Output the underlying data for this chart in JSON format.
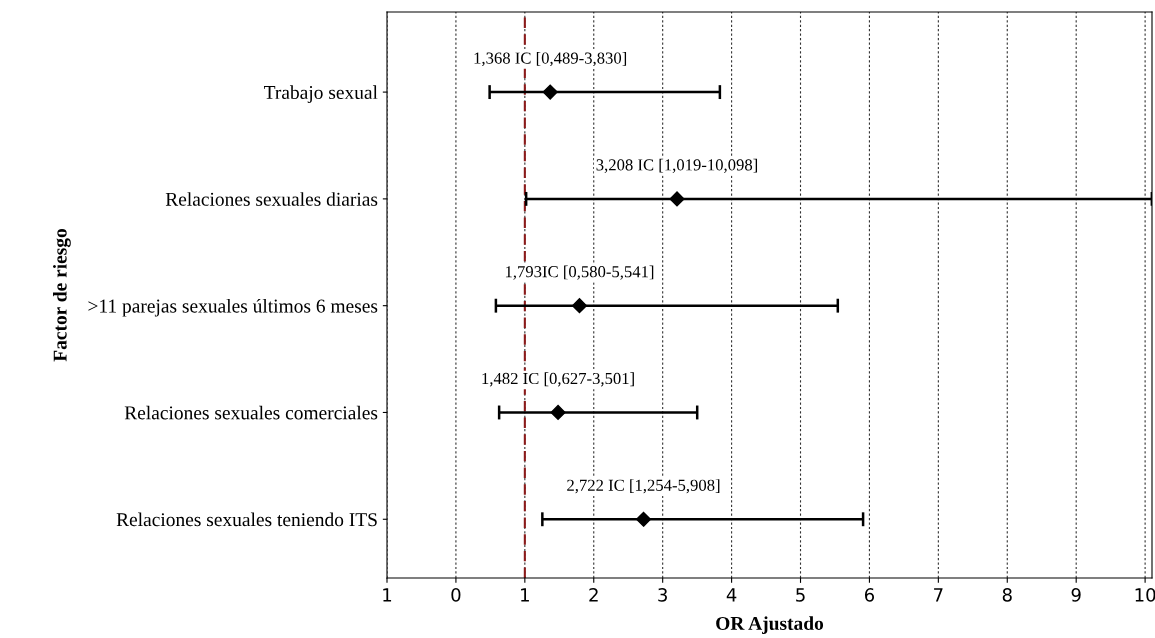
{
  "chart_data": {
    "type": "scatter",
    "orientation": "horizontal",
    "xlabel": "OR Ajustado",
    "ylabel": "Factor de riesgo",
    "categories": [
      "Trabajo sexual",
      "Relaciones sexuales diarias",
      ">11 parejas sexuales últimos 6 meses",
      "Relaciones sexuales comerciales",
      "Relaciones sexuales teniendo ITS"
    ],
    "series": [
      {
        "color": "#000000",
        "values": [
          1.368,
          3.208,
          1.793,
          1.482,
          2.722
        ],
        "errors": [
          [
            0.489,
            3.83
          ],
          [
            1.019,
            10.098
          ],
          [
            0.58,
            5.541
          ],
          [
            0.627,
            3.501
          ],
          [
            1.254,
            5.908
          ]
        ]
      }
    ],
    "marker": "diamond",
    "xlim": [
      -1,
      10.1
    ],
    "xticks": [
      {
        "value": -1,
        "label": "1"
      },
      0,
      1,
      2,
      3,
      4,
      5,
      6,
      7,
      8,
      9,
      10
    ],
    "grid": "x",
    "ref_lines": [
      {
        "axis": "x",
        "value": 1,
        "color": "#8b1a1a",
        "line_style": "dashed"
      }
    ],
    "annotations": [
      {
        "text": "1,368 IC [0,489-3,830]",
        "x": 1.368,
        "y": "Trabajo sexual"
      },
      {
        "text": "3,208 IC [1,019-10,098]",
        "x": 3.208,
        "y": "Relaciones sexuales diarias"
      },
      {
        "text": "1,793IC [0,580-5,541]",
        "x": 1.793,
        "y": ">11 parejas sexuales últimos 6 meses"
      },
      {
        "text": "1,482 IC [0,627-3,501]",
        "x": 1.482,
        "y": "Relaciones sexuales comerciales"
      },
      {
        "text": "2,722 IC [1,254-5,908]",
        "x": 2.722,
        "y": "Relaciones sexuales teniendo ITS"
      }
    ]
  }
}
